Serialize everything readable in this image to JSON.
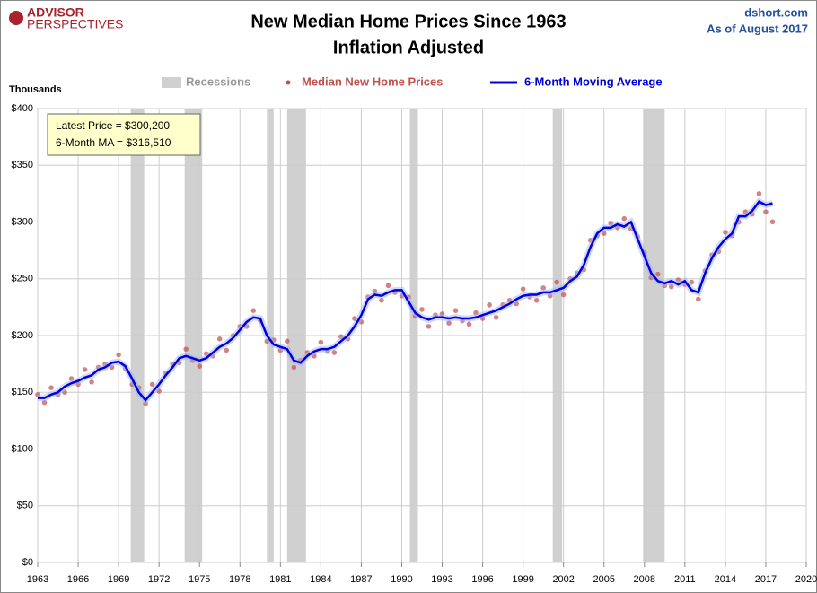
{
  "logo": {
    "line1": "ADVISOR",
    "line2": "PERSPECTIVES"
  },
  "source": "dshort.com",
  "date_note": "As of August 2017",
  "chart_data": {
    "type": "line",
    "title": "New Median Home Prices Since 1963",
    "subtitle": "Inflation Adjusted",
    "ylabel": "Thousands",
    "annotations": [
      "Latest Price = $300,200",
      "6-Month MA = $316,510"
    ],
    "recession_label": "Recessions",
    "recession_color": "#d0d0d0",
    "recessions": [
      [
        1969.9,
        1970.9
      ],
      [
        1973.9,
        1975.2
      ],
      [
        1980.0,
        1980.5
      ],
      [
        1981.5,
        1982.9
      ],
      [
        1990.6,
        1991.2
      ],
      [
        2001.2,
        2001.9
      ],
      [
        2007.9,
        2009.5
      ]
    ],
    "xlim": [
      1963,
      2020
    ],
    "xticks": [
      1963,
      1966,
      1969,
      1972,
      1975,
      1978,
      1981,
      1984,
      1987,
      1990,
      1993,
      1996,
      1999,
      2002,
      2005,
      2008,
      2011,
      2014,
      2017,
      2020
    ],
    "ylim": [
      0,
      400
    ],
    "yticks": [
      {
        "value": 0,
        "label": "$0"
      },
      {
        "value": 50,
        "label": "$50"
      },
      {
        "value": 100,
        "label": "$100"
      },
      {
        "value": 150,
        "label": "$150"
      },
      {
        "value": 200,
        "label": "$200"
      },
      {
        "value": 250,
        "label": "$250"
      },
      {
        "value": 300,
        "label": "$300"
      },
      {
        "value": 350,
        "label": "$350"
      },
      {
        "value": 400,
        "label": "$400"
      }
    ],
    "grid": true,
    "x": [
      1963,
      1963.5,
      1964,
      1964.5,
      1965,
      1965.5,
      1966,
      1966.5,
      1967,
      1967.5,
      1968,
      1968.5,
      1969,
      1969.5,
      1970,
      1970.5,
      1971,
      1971.5,
      1972,
      1972.5,
      1973,
      1973.5,
      1974,
      1974.5,
      1975,
      1975.5,
      1976,
      1976.5,
      1977,
      1977.5,
      1978,
      1978.5,
      1979,
      1979.5,
      1980,
      1980.5,
      1981,
      1981.5,
      1982,
      1982.5,
      1983,
      1983.5,
      1984,
      1984.5,
      1985,
      1985.5,
      1986,
      1986.5,
      1987,
      1987.5,
      1988,
      1988.5,
      1989,
      1989.5,
      1990,
      1990.5,
      1991,
      1991.5,
      1992,
      1992.5,
      1993,
      1993.5,
      1994,
      1994.5,
      1995,
      1995.5,
      1996,
      1996.5,
      1997,
      1997.5,
      1998,
      1998.5,
      1999,
      1999.5,
      2000,
      2000.5,
      2001,
      2001.5,
      2002,
      2002.5,
      2003,
      2003.5,
      2004,
      2004.5,
      2005,
      2005.5,
      2006,
      2006.5,
      2007,
      2007.5,
      2008,
      2008.5,
      2009,
      2009.5,
      2010,
      2010.5,
      2011,
      2011.5,
      2012,
      2012.5,
      2013,
      2013.5,
      2014,
      2014.5,
      2015,
      2015.5,
      2016,
      2016.5,
      2017,
      2017.5
    ],
    "series": [
      {
        "name": "Median New Home Prices",
        "type": "scatter",
        "color": "#c0504d",
        "values": [
          148,
          141,
          154,
          148,
          150,
          162,
          157,
          170,
          159,
          172,
          175,
          172,
          183,
          171,
          157,
          154,
          140,
          157,
          151,
          167,
          175,
          176,
          188,
          178,
          173,
          184,
          182,
          197,
          187,
          200,
          208,
          208,
          222,
          213,
          195,
          196,
          187,
          195,
          172,
          178,
          185,
          182,
          194,
          186,
          185,
          199,
          197,
          215,
          212,
          234,
          239,
          231,
          244,
          238,
          235,
          234,
          217,
          223,
          208,
          218,
          219,
          211,
          222,
          213,
          210,
          220,
          215,
          227,
          216,
          227,
          231,
          228,
          241,
          234,
          231,
          242,
          235,
          247,
          236,
          250,
          255,
          258,
          284,
          288,
          290,
          299,
          295,
          303,
          294,
          287,
          273,
          251,
          254,
          244,
          243,
          249,
          245,
          247,
          232,
          257,
          271,
          274,
          291,
          288,
          300,
          309,
          307,
          325,
          309,
          300.2
        ]
      },
      {
        "name": "6-Month Moving Average",
        "type": "line",
        "color": "#0000dd",
        "values": [
          145,
          145,
          148,
          150,
          155,
          158,
          160,
          163,
          165,
          170,
          172,
          176,
          177,
          173,
          162,
          150,
          143,
          150,
          157,
          165,
          172,
          180,
          182,
          180,
          178,
          180,
          185,
          190,
          193,
          198,
          205,
          212,
          216,
          215,
          200,
          192,
          190,
          188,
          178,
          176,
          182,
          186,
          188,
          188,
          190,
          195,
          200,
          208,
          218,
          232,
          236,
          235,
          238,
          240,
          240,
          230,
          220,
          216,
          214,
          216,
          216,
          215,
          216,
          215,
          215,
          216,
          218,
          220,
          222,
          225,
          228,
          232,
          235,
          236,
          236,
          238,
          238,
          240,
          242,
          248,
          252,
          262,
          278,
          290,
          295,
          295,
          298,
          296,
          300,
          285,
          270,
          255,
          248,
          246,
          248,
          245,
          248,
          240,
          238,
          255,
          268,
          278,
          285,
          290,
          305,
          305,
          310,
          318,
          315,
          316.51
        ]
      }
    ]
  }
}
